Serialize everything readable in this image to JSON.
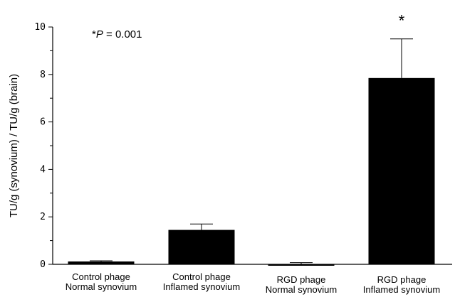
{
  "chart_data": {
    "type": "bar",
    "categories": [
      [
        "Control phage",
        "Normal synovium"
      ],
      [
        "Control phage",
        "Inflamed synovium"
      ],
      [
        "RGD phage",
        "Normal synovium"
      ],
      [
        "RGD phage",
        "Inflamed synovium"
      ]
    ],
    "values": [
      0.12,
      1.45,
      0.0,
      7.85
    ],
    "errors": [
      0.03,
      0.25,
      0.07,
      1.65
    ],
    "bar_color": "#000000",
    "ylabel": "TU/g (synovium) / TU/g (brain)",
    "xlabel": "",
    "ylim": [
      0,
      10
    ],
    "yticks": [
      0,
      2,
      4,
      6,
      8,
      10
    ],
    "grid": false,
    "annotation": {
      "prefix": "*",
      "italic": "P",
      "rest": " = 0.001"
    },
    "significance_marker": "*",
    "significance_index": 3
  }
}
